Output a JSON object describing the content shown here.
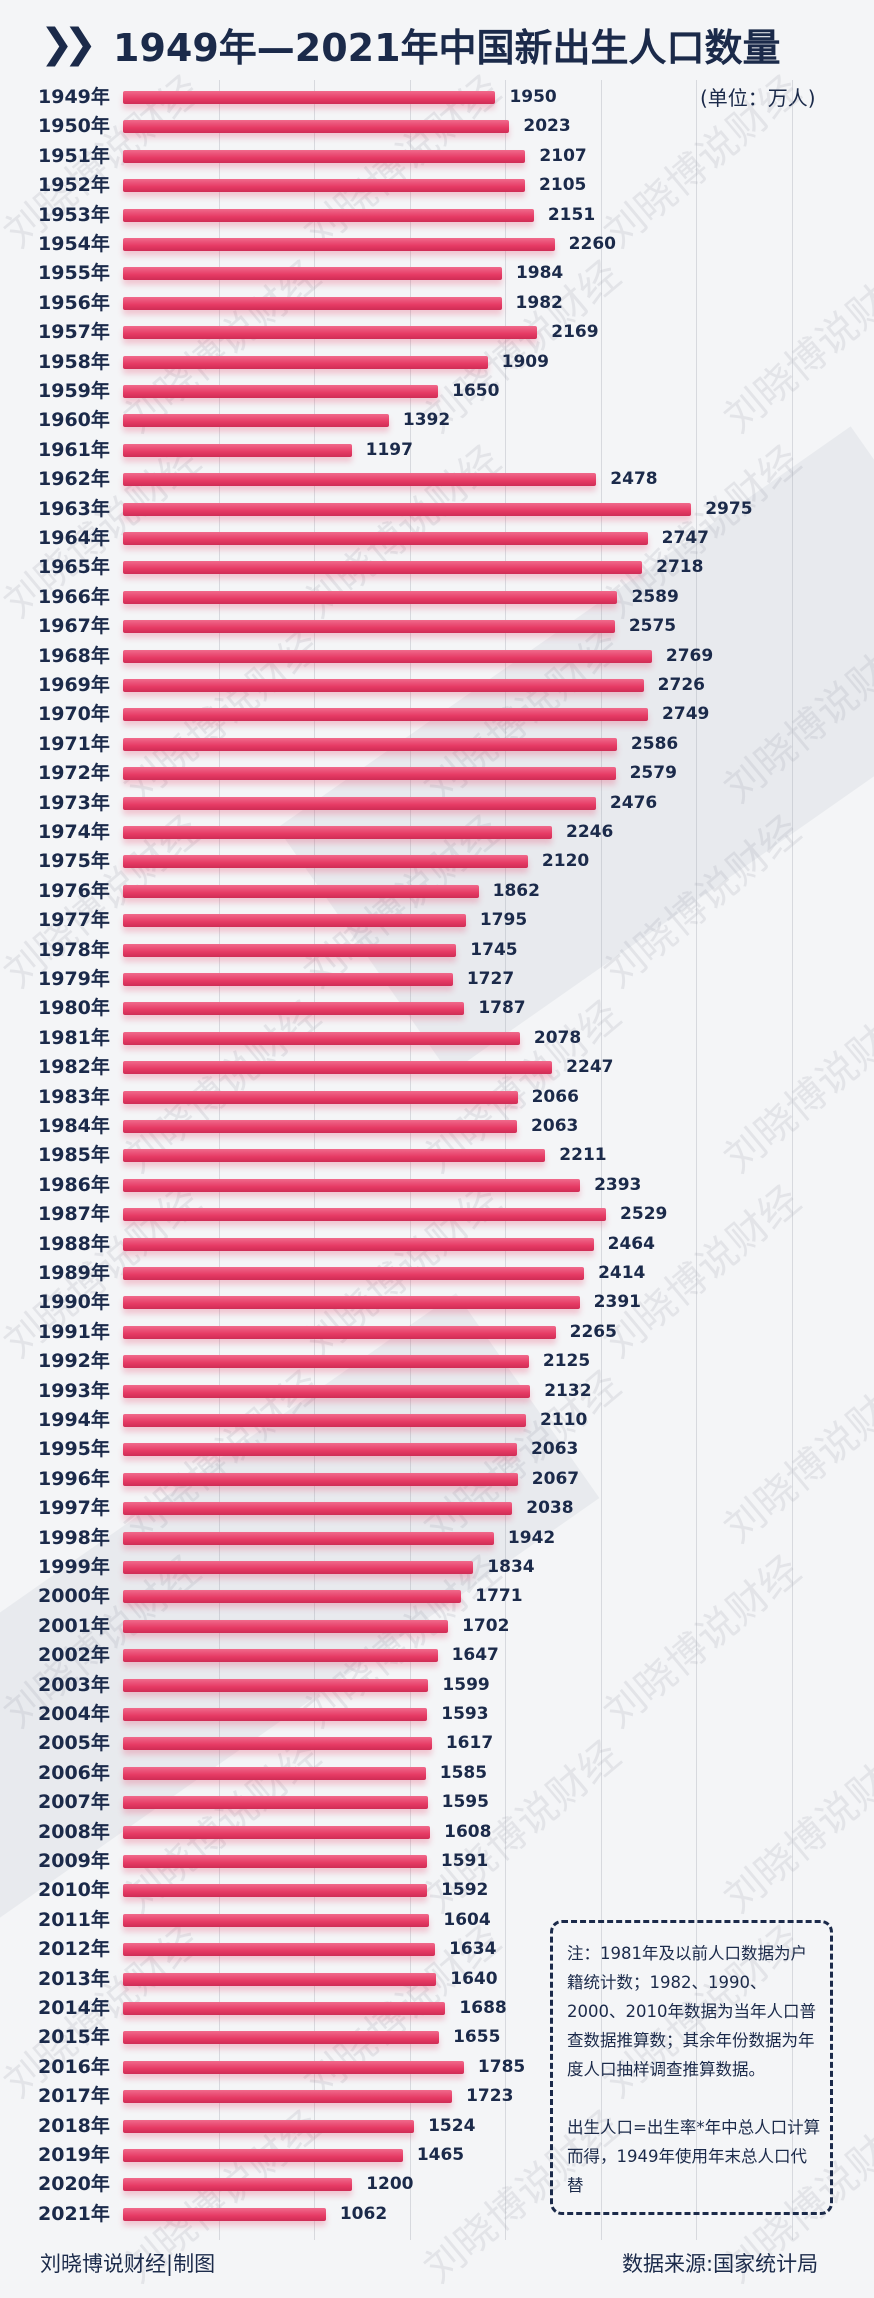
{
  "title": "1949年—2021年中国新出生人口数量",
  "unit_label": "(单位：万人)",
  "note": {
    "paragraph1": "注：1981年及以前人口数据为户籍统计数；1982、1990、2000、2010年数据为当年人口普查数据推算数；其余年份数据为年度人口抽样调查推算数据。",
    "paragraph2": "出生人口=出生率*年中总人口计算而得，1949年使用年末总人口代替"
  },
  "footer": {
    "credit": "刘晓博说财经|制图",
    "source": "数据来源:国家统计局"
  },
  "watermark": "刘晓博说财经",
  "colors": {
    "bar": "#e63a64",
    "text": "#1b2a4a"
  },
  "chart_data": {
    "type": "bar",
    "orientation": "horizontal",
    "title": "1949年—2021年中国新出生人口数量",
    "unit": "万人",
    "grid": true,
    "categories": [
      "1949年",
      "1950年",
      "1951年",
      "1952年",
      "1953年",
      "1954年",
      "1955年",
      "1956年",
      "1957年",
      "1958年",
      "1959年",
      "1960年",
      "1961年",
      "1962年",
      "1963年",
      "1964年",
      "1965年",
      "1966年",
      "1967年",
      "1968年",
      "1969年",
      "1970年",
      "1971年",
      "1972年",
      "1973年",
      "1974年",
      "1975年",
      "1976年",
      "1977年",
      "1978年",
      "1979年",
      "1980年",
      "1981年",
      "1982年",
      "1983年",
      "1984年",
      "1985年",
      "1986年",
      "1987年",
      "1988年",
      "1989年",
      "1990年",
      "1991年",
      "1992年",
      "1993年",
      "1994年",
      "1995年",
      "1996年",
      "1997年",
      "1998年",
      "1999年",
      "2000年",
      "2001年",
      "2002年",
      "2003年",
      "2004年",
      "2005年",
      "2006年",
      "2007年",
      "2008年",
      "2009年",
      "2010年",
      "2011年",
      "2012年",
      "2013年",
      "2014年",
      "2015年",
      "2016年",
      "2017年",
      "2018年",
      "2019年",
      "2020年",
      "2021年"
    ],
    "values": [
      1950,
      2023,
      2107,
      2105,
      2151,
      2260,
      1984,
      1982,
      2169,
      1909,
      1650,
      1392,
      1197,
      2478,
      2975,
      2747,
      2718,
      2589,
      2575,
      2769,
      2726,
      2749,
      2586,
      2579,
      2476,
      2246,
      2120,
      1862,
      1795,
      1745,
      1727,
      1787,
      2078,
      2247,
      2066,
      2063,
      2211,
      2393,
      2529,
      2464,
      2414,
      2391,
      2265,
      2125,
      2132,
      2110,
      2063,
      2067,
      2038,
      1942,
      1834,
      1771,
      1702,
      1647,
      1599,
      1593,
      1617,
      1585,
      1595,
      1608,
      1591,
      1592,
      1604,
      1634,
      1640,
      1688,
      1655,
      1785,
      1723,
      1524,
      1465,
      1200,
      1062
    ]
  }
}
